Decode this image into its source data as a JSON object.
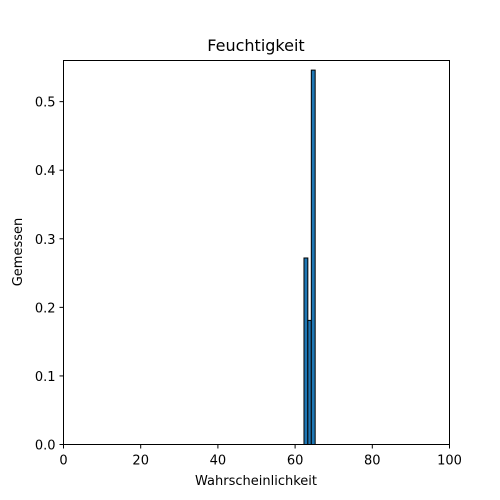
{
  "chart_data": {
    "type": "bar",
    "title": "Feuchtigkeit",
    "xlabel": "Wahrscheinlichkeit",
    "ylabel": "Gemessen",
    "xlim": [
      0,
      100
    ],
    "ylim": [
      0,
      0.56
    ],
    "xticks": [
      0,
      20,
      40,
      60,
      80,
      100
    ],
    "xtick_labels": [
      "0",
      "20",
      "40",
      "60",
      "80",
      "100"
    ],
    "yticks": [
      0.0,
      0.1,
      0.2,
      0.3,
      0.4,
      0.5
    ],
    "ytick_labels": [
      "0.0",
      "0.1",
      "0.2",
      "0.3",
      "0.4",
      "0.5"
    ],
    "bars": [
      {
        "x_start": 62.3,
        "x_end": 63.3,
        "value": 0.272
      },
      {
        "x_start": 63.3,
        "x_end": 64.2,
        "value": 0.181
      },
      {
        "x_start": 64.2,
        "x_end": 65.2,
        "value": 0.546
      }
    ],
    "bar_color": "#1f77b4",
    "edge_color": "#000000",
    "grid": false
  }
}
